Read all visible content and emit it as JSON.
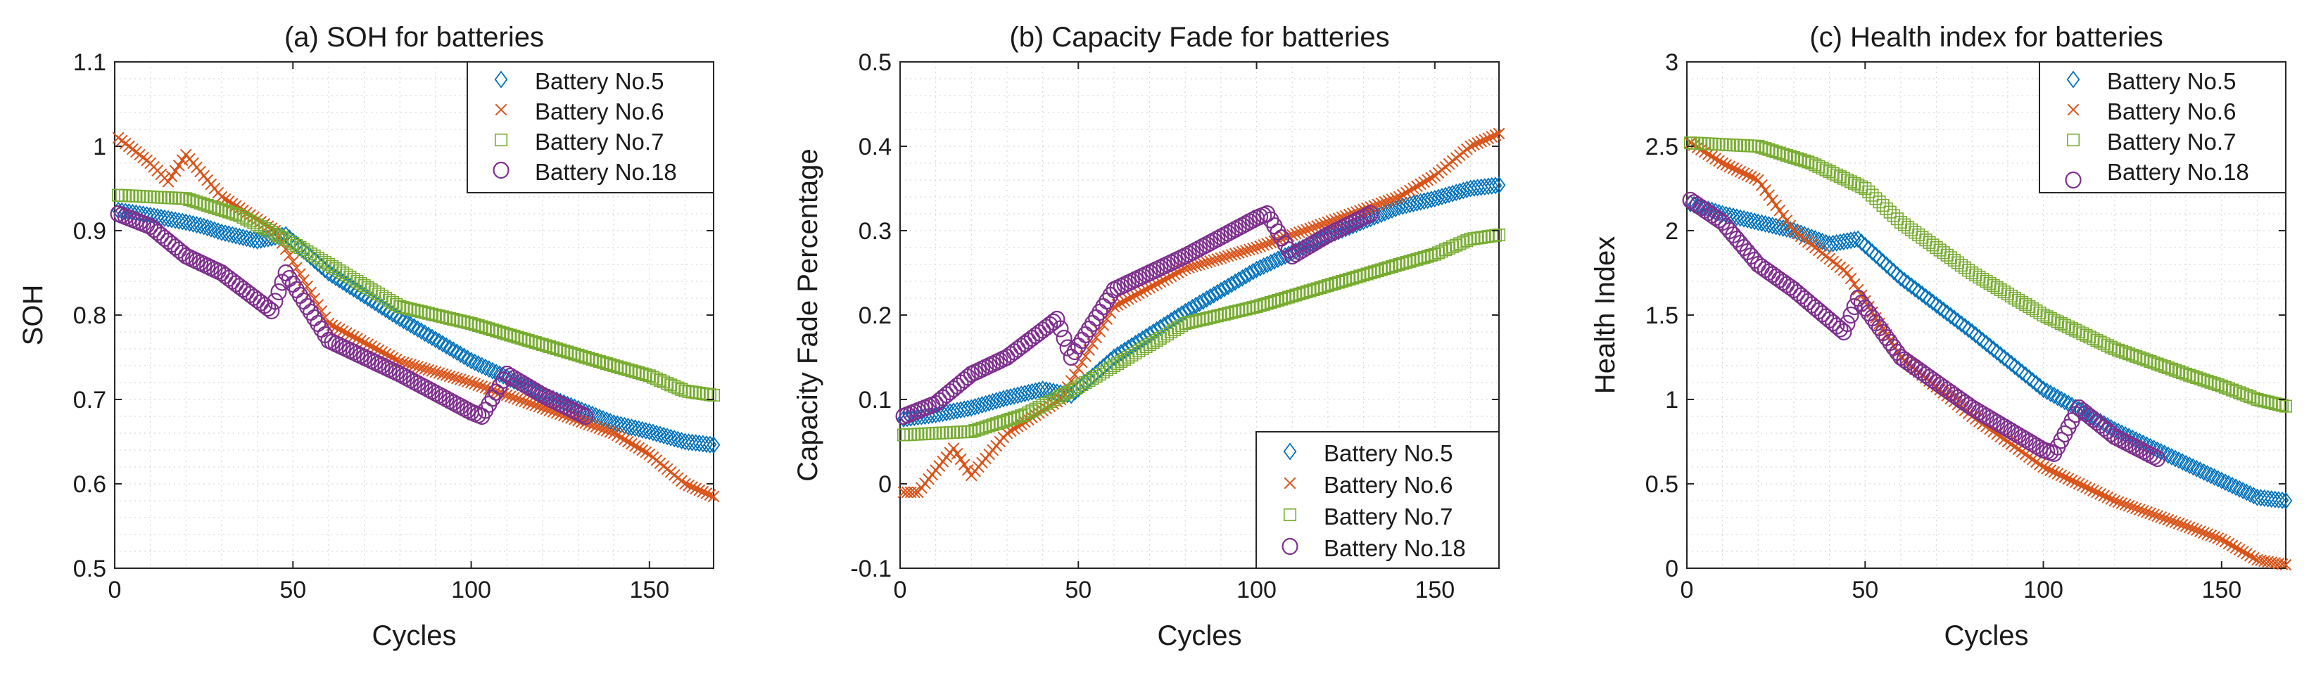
{
  "colors": {
    "Battery No.5": "#0072BD",
    "Battery No.6": "#D95319",
    "Battery No.7": "#77AC30",
    "Battery No.18": "#7E2F8E"
  },
  "markers": {
    "Battery No.5": "diamond",
    "Battery No.6": "cross",
    "Battery No.7": "square",
    "Battery No.18": "circle"
  },
  "chart_data": [
    {
      "type": "scatter",
      "title": "(a) SOH for batteries",
      "xlabel": "Cycles",
      "ylabel": "SOH",
      "xlim": [
        0,
        168
      ],
      "ylim": [
        0.5,
        1.1
      ],
      "xticks": [
        0,
        50,
        100,
        150
      ],
      "yticks": [
        0.5,
        0.6,
        0.7,
        0.8,
        0.9,
        1,
        1.1
      ],
      "ytick_labels": [
        "0.5",
        "0.6",
        "0.7",
        "0.8",
        "0.9",
        "1",
        "1.1"
      ],
      "grid": true,
      "legend_position": "top-right",
      "series": [
        {
          "name": "Battery No.5",
          "x_start": 1,
          "x_end": 168,
          "knots_x": [
            1,
            10,
            20,
            25,
            30,
            40,
            48,
            60,
            80,
            100,
            120,
            140,
            150,
            160,
            168
          ],
          "knots_y": [
            0.924,
            0.918,
            0.91,
            0.905,
            0.898,
            0.888,
            0.895,
            0.85,
            0.796,
            0.746,
            0.706,
            0.672,
            0.662,
            0.65,
            0.646
          ]
        },
        {
          "name": "Battery No.6",
          "x_start": 1,
          "x_end": 168,
          "knots_x": [
            1,
            10,
            15,
            20,
            30,
            45,
            60,
            80,
            100,
            120,
            140,
            150,
            160,
            168
          ],
          "knots_y": [
            1.01,
            0.98,
            0.958,
            0.99,
            0.94,
            0.9,
            0.79,
            0.745,
            0.72,
            0.69,
            0.66,
            0.635,
            0.6,
            0.585
          ]
        },
        {
          "name": "Battery No.7",
          "x_start": 1,
          "x_end": 168,
          "knots_x": [
            1,
            20,
            35,
            50,
            60,
            80,
            100,
            120,
            140,
            150,
            160,
            168
          ],
          "knots_y": [
            0.942,
            0.938,
            0.918,
            0.885,
            0.86,
            0.81,
            0.79,
            0.765,
            0.74,
            0.728,
            0.71,
            0.705
          ]
        },
        {
          "name": "Battery No.18",
          "x_start": 1,
          "x_end": 132,
          "knots_x": [
            1,
            10,
            20,
            30,
            44,
            48,
            60,
            80,
            100,
            103,
            110,
            120,
            132
          ],
          "knots_y": [
            0.92,
            0.905,
            0.87,
            0.85,
            0.805,
            0.85,
            0.77,
            0.73,
            0.685,
            0.68,
            0.73,
            0.705,
            0.68
          ]
        }
      ]
    },
    {
      "type": "scatter",
      "title": "(b) Capacity Fade for batteries",
      "xlabel": "Cycles",
      "ylabel": "Capacity Fade Percentage",
      "xlim": [
        0,
        168
      ],
      "ylim": [
        -0.1,
        0.5
      ],
      "xticks": [
        0,
        50,
        100,
        150
      ],
      "yticks": [
        -0.1,
        0,
        0.1,
        0.2,
        0.3,
        0.4,
        0.5
      ],
      "ytick_labels": [
        "-0.1",
        "0",
        "0.1",
        "0.2",
        "0.3",
        "0.4",
        "0.5"
      ],
      "grid": true,
      "legend_position": "bottom-right",
      "series": [
        {
          "name": "Battery No.5",
          "x_start": 1,
          "x_end": 168,
          "knots_x": [
            1,
            10,
            20,
            30,
            40,
            48,
            60,
            80,
            100,
            120,
            140,
            150,
            160,
            168
          ],
          "knots_y": [
            0.077,
            0.082,
            0.09,
            0.102,
            0.112,
            0.105,
            0.15,
            0.204,
            0.254,
            0.294,
            0.328,
            0.338,
            0.35,
            0.354
          ]
        },
        {
          "name": "Battery No.6",
          "x_start": 1,
          "x_end": 168,
          "knots_x": [
            1,
            5,
            15,
            20,
            30,
            45,
            60,
            80,
            100,
            120,
            140,
            150,
            160,
            168
          ],
          "knots_y": [
            -0.01,
            -0.01,
            0.042,
            0.01,
            0.06,
            0.1,
            0.21,
            0.255,
            0.28,
            0.31,
            0.34,
            0.365,
            0.4,
            0.415
          ]
        },
        {
          "name": "Battery No.7",
          "x_start": 1,
          "x_end": 168,
          "knots_x": [
            1,
            20,
            35,
            50,
            60,
            80,
            100,
            120,
            140,
            150,
            160,
            168
          ],
          "knots_y": [
            0.058,
            0.062,
            0.082,
            0.115,
            0.14,
            0.19,
            0.21,
            0.235,
            0.26,
            0.272,
            0.29,
            0.295
          ]
        },
        {
          "name": "Battery No.18",
          "x_start": 1,
          "x_end": 132,
          "knots_x": [
            1,
            10,
            20,
            30,
            44,
            48,
            60,
            80,
            100,
            103,
            110,
            120,
            132
          ],
          "knots_y": [
            0.08,
            0.095,
            0.13,
            0.15,
            0.195,
            0.15,
            0.23,
            0.27,
            0.315,
            0.32,
            0.27,
            0.295,
            0.32
          ]
        }
      ]
    },
    {
      "type": "scatter",
      "title": "(c) Health index for batteries",
      "xlabel": "Cycles",
      "ylabel": "Health Index",
      "xlim": [
        0,
        168
      ],
      "ylim": [
        0,
        3
      ],
      "xticks": [
        0,
        50,
        100,
        150
      ],
      "yticks": [
        0,
        0.5,
        1,
        1.5,
        2,
        2.5,
        3
      ],
      "ytick_labels": [
        "0",
        "0.5",
        "1",
        "1.5",
        "2",
        "2.5",
        "3"
      ],
      "grid": true,
      "legend_position": "top-right",
      "series": [
        {
          "name": "Battery No.5",
          "x_start": 1,
          "x_end": 168,
          "knots_x": [
            1,
            10,
            20,
            30,
            40,
            48,
            60,
            80,
            100,
            120,
            140,
            150,
            160,
            168
          ],
          "knots_y": [
            2.16,
            2.1,
            2.05,
            2.0,
            1.92,
            1.95,
            1.72,
            1.4,
            1.06,
            0.82,
            0.62,
            0.52,
            0.42,
            0.4
          ]
        },
        {
          "name": "Battery No.6",
          "x_start": 1,
          "x_end": 168,
          "knots_x": [
            1,
            10,
            20,
            30,
            45,
            60,
            80,
            100,
            120,
            140,
            150,
            160,
            168
          ],
          "knots_y": [
            2.52,
            2.4,
            2.3,
            2.0,
            1.75,
            1.25,
            0.9,
            0.6,
            0.4,
            0.25,
            0.17,
            0.05,
            0.02
          ]
        },
        {
          "name": "Battery No.7",
          "x_start": 1,
          "x_end": 168,
          "knots_x": [
            1,
            20,
            35,
            50,
            60,
            80,
            100,
            120,
            140,
            150,
            160,
            168
          ],
          "knots_y": [
            2.52,
            2.5,
            2.4,
            2.25,
            2.05,
            1.75,
            1.5,
            1.3,
            1.15,
            1.08,
            1.0,
            0.96
          ]
        },
        {
          "name": "Battery No.18",
          "x_start": 1,
          "x_end": 132,
          "knots_x": [
            1,
            10,
            20,
            30,
            44,
            48,
            60,
            80,
            100,
            103,
            110,
            120,
            132
          ],
          "knots_y": [
            2.18,
            2.05,
            1.8,
            1.65,
            1.4,
            1.6,
            1.25,
            0.95,
            0.7,
            0.68,
            0.95,
            0.78,
            0.65
          ]
        }
      ]
    }
  ]
}
